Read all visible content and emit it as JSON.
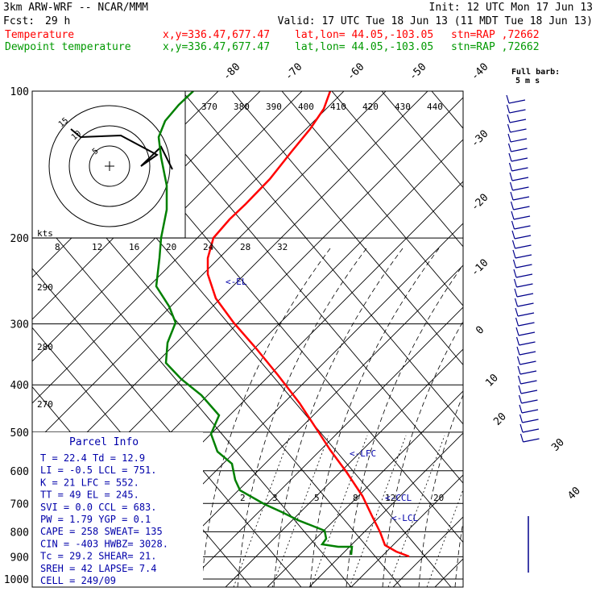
{
  "header": {
    "model": "3km ARW-WRF -- NCAR/MMM",
    "init": "Init: 12 UTC Mon 17 Jun 13",
    "fcst_label": "Fcst:",
    "fcst_value": "29 h",
    "valid": "Valid: 17 UTC Tue 18 Jun 13 (11 MDT Tue 18 Jun 13)",
    "rows": [
      {
        "name": "Temperature",
        "xy": "x,y=336.47,677.47",
        "latlon": "lat,lon= 44.05,-103.05",
        "stn": "stn=RAP ,72662",
        "color": "#ff0000"
      },
      {
        "name": "Dewpoint temperature",
        "xy": "x,y=336.47,677.47",
        "latlon": "lat,lon= 44.05,-103.05",
        "stn": "stn=RAP ,72662",
        "color": "#009900"
      }
    ]
  },
  "colors": {
    "temperature": "#ff0000",
    "dewpoint": "#008000",
    "barbs": "#00008b",
    "labels_blue": "#0000aa",
    "axis": "#000000"
  },
  "chart_data": {
    "type": "line",
    "pressure_ticks": [
      "100",
      "200",
      "300",
      "400",
      "500",
      "600",
      "700",
      "800",
      "900",
      "1000"
    ],
    "pressure_values": [
      100,
      200,
      300,
      400,
      500,
      600,
      700,
      800,
      900,
      1000
    ],
    "top_temp_labels": [
      "-80",
      "-70",
      "-60",
      "-50",
      "-40"
    ],
    "right_temp_labels": [
      "-30",
      "-20",
      "-10",
      "0",
      "10",
      "20",
      "30",
      "40"
    ],
    "theta_labels": [
      "370",
      "380",
      "390",
      "400",
      "410",
      "420",
      "430",
      "440"
    ],
    "theta_left_labels": [
      "290",
      "280",
      "270"
    ],
    "mixing_ratio_labels": [
      "2",
      "3",
      "5",
      "8",
      "12",
      "20"
    ],
    "hodograph": {
      "speed_axis_label": "kts",
      "speed_ticks": [
        "8",
        "12",
        "16",
        "20",
        "24",
        "28",
        "32"
      ],
      "ring_labels": [
        "15",
        "10",
        "5"
      ]
    },
    "series": [
      {
        "name": "Temperature",
        "points": [
          [
            410,
            113
          ],
          [
            402,
            135
          ],
          [
            385,
            160
          ],
          [
            362,
            188
          ],
          [
            335,
            222
          ],
          [
            305,
            253
          ],
          [
            285,
            272
          ],
          [
            265,
            295
          ],
          [
            258,
            320
          ],
          [
            258,
            340
          ],
          [
            268,
            370
          ],
          [
            290,
            400
          ],
          [
            318,
            432
          ],
          [
            345,
            465
          ],
          [
            372,
            500
          ],
          [
            395,
            535
          ],
          [
            410,
            558
          ],
          [
            430,
            585
          ],
          [
            450,
            615
          ],
          [
            462,
            640
          ],
          [
            472,
            660
          ],
          [
            478,
            676
          ],
          [
            492,
            684
          ],
          [
            508,
            690
          ]
        ]
      },
      {
        "name": "Dewpoint temperature",
        "points": [
          [
            240,
            113
          ],
          [
            222,
            130
          ],
          [
            205,
            150
          ],
          [
            197,
            170
          ],
          [
            200,
            195
          ],
          [
            207,
            230
          ],
          [
            207,
            260
          ],
          [
            200,
            295
          ],
          [
            198,
            320
          ],
          [
            194,
            355
          ],
          [
            210,
            380
          ],
          [
            218,
            400
          ],
          [
            208,
            425
          ],
          [
            206,
            450
          ],
          [
            225,
            470
          ],
          [
            250,
            490
          ],
          [
            272,
            515
          ],
          [
            262,
            538
          ],
          [
            270,
            560
          ],
          [
            288,
            575
          ],
          [
            292,
            595
          ],
          [
            298,
            608
          ],
          [
            328,
            625
          ],
          [
            350,
            635
          ],
          [
            370,
            645
          ],
          [
            403,
            658
          ],
          [
            405,
            668
          ],
          [
            400,
            675
          ],
          [
            420,
            678
          ],
          [
            437,
            678
          ],
          [
            436,
            688
          ]
        ]
      }
    ],
    "annotations": [
      "<-EL",
      "<-LFC",
      "<-CCL",
      "<-LCL"
    ],
    "barb_legend": [
      "Full barb:",
      "5 m s"
    ]
  },
  "parcel_info": {
    "title": "Parcel Info",
    "rows": [
      "T  =   22.4  Td =  12.9",
      "LI =   -0.5  LCL =  751.",
      "K  =     21  LFC =  552.",
      "TT =     49  EL  =  245.",
      "SVI =   0.0  CCL =  683.",
      "PW =   1.79  YGP =   0.1",
      "CAPE =  258  SWEAT=  135",
      "CIN =  -403  HWBZ= 3028.",
      "Tc =   29.2  SHEAR=  21.",
      "SREH =   42  LAPSE=  7.4",
      "CELL = 249/09"
    ]
  }
}
